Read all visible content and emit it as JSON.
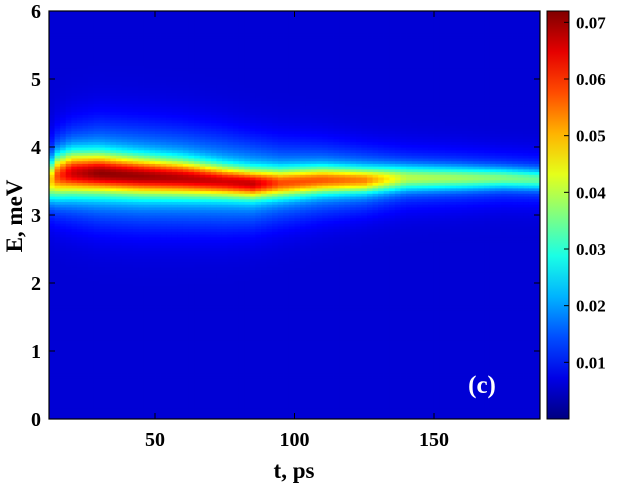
{
  "chart_data": {
    "type": "heatmap",
    "title": "",
    "xlabel": "t, ps",
    "ylabel": "E, meV",
    "xlim": [
      12,
      188
    ],
    "ylim": [
      0,
      6
    ],
    "x_ticks": [
      50,
      100,
      150
    ],
    "y_ticks": [
      0,
      1,
      2,
      3,
      4,
      5,
      6
    ],
    "colorbar": {
      "colormap": "jet",
      "range": [
        0.0,
        0.072
      ],
      "ticks": [
        0.01,
        0.02,
        0.03,
        0.04,
        0.05,
        0.06,
        0.07
      ],
      "tick_labels": [
        "0.01",
        "0.02",
        "0.03",
        "0.04",
        "0.05",
        "0.06",
        "0.07"
      ]
    },
    "panel_label": "(c)",
    "background_value": 0.006,
    "band": {
      "description_points": [
        {
          "t": 12,
          "center_E": 3.5,
          "peak": 0.045,
          "width_E": 0.18,
          "halo_width_E": 0.38
        },
        {
          "t": 15,
          "center_E": 3.58,
          "peak": 0.058,
          "width_E": 0.2,
          "halo_width_E": 0.42
        },
        {
          "t": 20,
          "center_E": 3.62,
          "peak": 0.066,
          "width_E": 0.2,
          "halo_width_E": 0.45
        },
        {
          "t": 30,
          "center_E": 3.62,
          "peak": 0.071,
          "width_E": 0.19,
          "halo_width_E": 0.48
        },
        {
          "t": 45,
          "center_E": 3.58,
          "peak": 0.07,
          "width_E": 0.18,
          "halo_width_E": 0.48
        },
        {
          "t": 60,
          "center_E": 3.55,
          "peak": 0.068,
          "width_E": 0.17,
          "halo_width_E": 0.47
        },
        {
          "t": 75,
          "center_E": 3.5,
          "peak": 0.066,
          "width_E": 0.15,
          "halo_width_E": 0.45
        },
        {
          "t": 85,
          "center_E": 3.47,
          "peak": 0.067,
          "width_E": 0.14,
          "halo_width_E": 0.42
        },
        {
          "t": 95,
          "center_E": 3.48,
          "peak": 0.058,
          "width_E": 0.14,
          "halo_width_E": 0.4
        },
        {
          "t": 110,
          "center_E": 3.52,
          "peak": 0.057,
          "width_E": 0.13,
          "halo_width_E": 0.36
        },
        {
          "t": 125,
          "center_E": 3.52,
          "peak": 0.054,
          "width_E": 0.12,
          "halo_width_E": 0.32
        },
        {
          "t": 140,
          "center_E": 3.55,
          "peak": 0.04,
          "width_E": 0.12,
          "halo_width_E": 0.3
        },
        {
          "t": 160,
          "center_E": 3.55,
          "peak": 0.038,
          "width_E": 0.11,
          "halo_width_E": 0.28
        },
        {
          "t": 175,
          "center_E": 3.55,
          "peak": 0.036,
          "width_E": 0.1,
          "halo_width_E": 0.26
        },
        {
          "t": 188,
          "center_E": 3.53,
          "peak": 0.034,
          "width_E": 0.1,
          "halo_width_E": 0.26
        }
      ]
    }
  }
}
